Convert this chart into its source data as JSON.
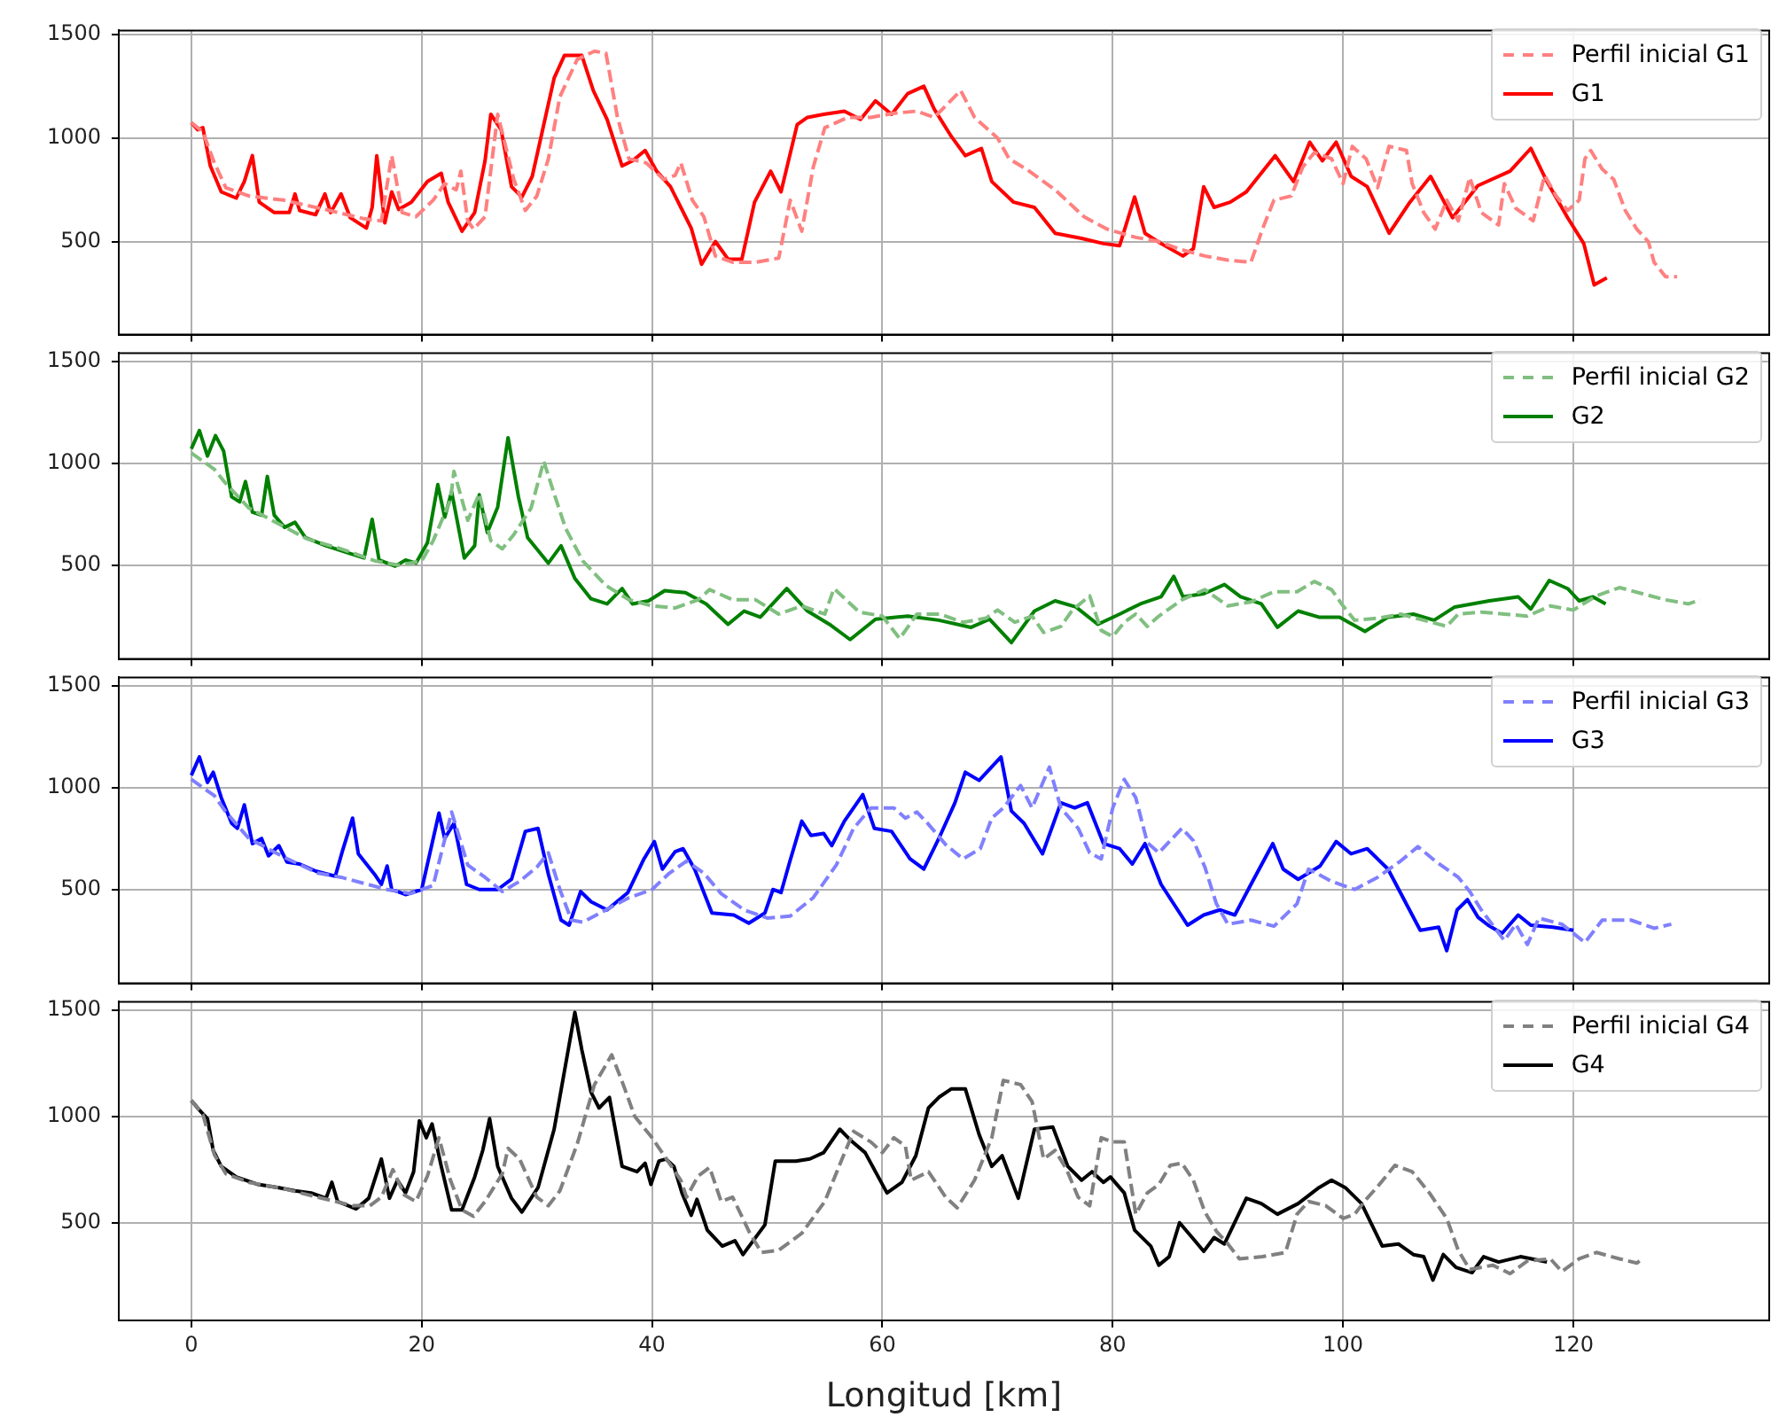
{
  "chart_data": [
    {
      "type": "line",
      "xlim": [
        -6.3,
        137
      ],
      "ylim": [
        50,
        1520
      ],
      "xticks": [
        0,
        20,
        40,
        60,
        80,
        100,
        120
      ],
      "yticks": [
        500,
        1000,
        1500
      ],
      "grid": true,
      "legend": "top right",
      "tick_labels": "y",
      "series": [
        {
          "name": "Perfil inicial G1",
          "color": "#ff8080",
          "line_style": "dashed",
          "x": [
            0,
            1,
            2,
            3,
            5,
            8,
            12,
            15,
            16.5,
            17.4,
            18.3,
            19.5,
            21,
            22,
            23,
            23.4,
            24,
            24.5,
            25.5,
            26.6,
            28,
            29,
            30,
            31,
            32,
            33.5,
            35,
            36,
            37,
            38,
            39.5,
            41,
            42,
            42.5,
            43.5,
            44.5,
            45.5,
            47,
            49,
            51,
            52,
            53,
            54,
            55,
            57,
            59,
            61,
            63,
            64.5,
            66.8,
            68,
            70,
            71,
            72.5,
            75,
            77.5,
            79.5,
            82,
            84,
            86,
            88,
            90,
            92,
            93,
            94,
            95.5,
            96.5,
            97.5,
            99,
            100,
            100.8,
            102,
            103,
            104,
            105.5,
            106,
            107,
            108,
            109,
            110,
            111,
            112,
            113.5,
            114,
            115,
            116.5,
            117.5,
            118.5,
            119.5,
            120.5,
            121,
            121.5,
            122.5,
            123.5,
            124.5,
            125.5,
            126.5,
            127,
            128,
            129
          ],
          "values": [
            1075,
            1030,
            880,
            760,
            720,
            700,
            650,
            610,
            600,
            915,
            640,
            620,
            700,
            780,
            750,
            840,
            600,
            560,
            620,
            1115,
            800,
            650,
            720,
            900,
            1200,
            1380,
            1420,
            1410,
            1100,
            900,
            880,
            800,
            820,
            880,
            700,
            620,
            430,
            400,
            400,
            420,
            700,
            550,
            860,
            1050,
            1100,
            1100,
            1120,
            1130,
            1100,
            1230,
            1100,
            1000,
            900,
            850,
            750,
            620,
            560,
            520,
            500,
            460,
            430,
            410,
            400,
            560,
            700,
            720,
            860,
            930,
            900,
            780,
            960,
            900,
            760,
            960,
            940,
            780,
            640,
            560,
            700,
            600,
            810,
            640,
            580,
            780,
            660,
            600,
            820,
            720,
            650,
            700,
            900,
            940,
            850,
            800,
            650,
            560,
            500,
            400,
            330,
            330
          ]
        },
        {
          "name": "G1",
          "color": "#ff0000",
          "line_style": "solid",
          "x": [
            0,
            0.55,
            1,
            1.65,
            2.6,
            3.9,
            4.6,
            5.3,
            5.9,
            7.2,
            8.5,
            9,
            9.4,
            10.8,
            11.6,
            12.1,
            13,
            13.8,
            15.2,
            15.7,
            16.1,
            16.8,
            17.4,
            18,
            19.1,
            20.5,
            21.7,
            22.3,
            23.5,
            24.6,
            25.5,
            26,
            26.9,
            27.8,
            28.7,
            29.6,
            30.5,
            31.5,
            32.4,
            33.9,
            34.9,
            36.1,
            37.4,
            38.3,
            39.4,
            40.4,
            41.6,
            42.5,
            43.4,
            44.3,
            45.5,
            46.6,
            47.8,
            48.9,
            50.3,
            51.2,
            52.6,
            53.5,
            54.9,
            56.7,
            58.1,
            59.4,
            60.8,
            62.2,
            63.6,
            64.5,
            65.9,
            67.2,
            68.6,
            69.5,
            71.4,
            73.2,
            75,
            77.3,
            79.2,
            80.6,
            81.9,
            82.8,
            84.2,
            86.1,
            87,
            87.9,
            88.8,
            90.2,
            91.6,
            94.1,
            95.7,
            97.1,
            98.2,
            99.4,
            100.7,
            102.1,
            104,
            105.8,
            107.6,
            109.5,
            111.7,
            114.5,
            116.3,
            117.7,
            119.5,
            120.9,
            121.8,
            122.9
          ],
          "values": [
            1075,
            1040,
            1050,
            865,
            740,
            710,
            790,
            915,
            690,
            640,
            640,
            730,
            650,
            630,
            730,
            640,
            730,
            615,
            565,
            665,
            915,
            590,
            740,
            655,
            690,
            790,
            830,
            690,
            550,
            640,
            890,
            1115,
            1040,
            765,
            715,
            815,
            1040,
            1290,
            1400,
            1400,
            1230,
            1090,
            865,
            890,
            940,
            840,
            765,
            665,
            565,
            390,
            500,
            415,
            415,
            690,
            840,
            740,
            1065,
            1100,
            1115,
            1130,
            1090,
            1180,
            1115,
            1215,
            1250,
            1140,
            1015,
            915,
            950,
            790,
            690,
            665,
            540,
            515,
            490,
            480,
            715,
            540,
            490,
            430,
            465,
            765,
            665,
            690,
            740,
            915,
            790,
            980,
            890,
            980,
            815,
            765,
            540,
            690,
            815,
            615,
            770,
            840,
            950,
            790,
            615,
            490,
            290,
            325
          ]
        }
      ]
    },
    {
      "type": "line",
      "xlim": [
        -6.3,
        137
      ],
      "ylim": [
        40,
        1540
      ],
      "xticks": [
        0,
        20,
        40,
        60,
        80,
        100,
        120
      ],
      "yticks": [
        500,
        1000,
        1500
      ],
      "grid": true,
      "legend": "top right",
      "tick_labels": "y",
      "series": [
        {
          "name": "Perfil inicial G2",
          "color": "#80bf80",
          "line_style": "dashed",
          "x": [
            0,
            1,
            2,
            3,
            5,
            7,
            10,
            13,
            16,
            18,
            20,
            21,
            22.5,
            22.8,
            24,
            25,
            26,
            27,
            28,
            29.5,
            30.6,
            31.5,
            32.5,
            34,
            36,
            38,
            40,
            42,
            44,
            45,
            47,
            49,
            51,
            53,
            55,
            55.8,
            58,
            60,
            61.5,
            63,
            65,
            67,
            69,
            70,
            71.5,
            73,
            74,
            75.5,
            76.5,
            78,
            79,
            80,
            81,
            82,
            83,
            84,
            86,
            88,
            90,
            92,
            94,
            96,
            97.5,
            99,
            100,
            101,
            103,
            105,
            107,
            109,
            110,
            112,
            114,
            116,
            118,
            120,
            122,
            124,
            126,
            128,
            130,
            131
          ],
          "values": [
            1050,
            1010,
            970,
            900,
            780,
            720,
            630,
            580,
            520,
            500,
            520,
            620,
            820,
            960,
            720,
            850,
            620,
            580,
            650,
            780,
            1010,
            850,
            680,
            520,
            400,
            330,
            300,
            290,
            330,
            380,
            330,
            330,
            260,
            300,
            260,
            385,
            270,
            250,
            140,
            260,
            260,
            220,
            240,
            280,
            220,
            250,
            170,
            200,
            280,
            350,
            180,
            150,
            220,
            260,
            200,
            250,
            330,
            380,
            300,
            320,
            370,
            370,
            420,
            380,
            300,
            230,
            240,
            260,
            230,
            200,
            260,
            270,
            260,
            250,
            300,
            280,
            350,
            390,
            360,
            330,
            310,
            330
          ]
        },
        {
          "name": "G2",
          "color": "#008000",
          "line_style": "solid",
          "x": [
            0,
            0.7,
            1.4,
            2.1,
            2.8,
            3.5,
            4.2,
            4.7,
            5.3,
            6.1,
            6.6,
            7.2,
            8.1,
            9,
            9.9,
            11.7,
            13.6,
            15,
            15.7,
            16.3,
            17.7,
            18.6,
            19.5,
            20.5,
            21.4,
            22,
            22.6,
            23.7,
            24.6,
            25,
            25.7,
            26.6,
            27.5,
            28.4,
            29.2,
            31,
            32.1,
            33.3,
            34.7,
            36.1,
            37.4,
            38.3,
            39.7,
            41.1,
            42.9,
            44.7,
            46.6,
            48,
            49.4,
            51.7,
            53.5,
            55.4,
            57.2,
            59.4,
            62.2,
            64.9,
            67.7,
            69.3,
            71.2,
            73.2,
            75,
            76.8,
            78.7,
            80.6,
            82.4,
            84.2,
            85.3,
            86.1,
            87.9,
            89.7,
            91.1,
            92.9,
            94.3,
            96.1,
            97.9,
            99.7,
            101.9,
            103.9,
            106.1,
            107.9,
            109.7,
            112.7,
            115.2,
            116.3,
            117.9,
            119.5,
            120.5,
            121.7,
            122.8
          ],
          "values": [
            1070,
            1160,
            1035,
            1135,
            1060,
            835,
            810,
            910,
            760,
            745,
            935,
            745,
            685,
            710,
            635,
            595,
            560,
            535,
            725,
            525,
            495,
            525,
            510,
            610,
            895,
            735,
            860,
            535,
            595,
            845,
            660,
            785,
            1125,
            835,
            635,
            510,
            595,
            435,
            335,
            310,
            385,
            310,
            325,
            375,
            365,
            310,
            210,
            275,
            245,
            385,
            275,
            210,
            135,
            235,
            250,
            230,
            195,
            235,
            120,
            275,
            325,
            295,
            210,
            260,
            310,
            345,
            445,
            345,
            360,
            405,
            345,
            310,
            195,
            275,
            245,
            245,
            175,
            245,
            260,
            230,
            295,
            325,
            345,
            285,
            425,
            385,
            325,
            345,
            310
          ]
        }
      ]
    },
    {
      "type": "line",
      "xlim": [
        -6.3,
        137
      ],
      "ylim": [
        40,
        1540
      ],
      "xticks": [
        0,
        20,
        40,
        60,
        80,
        100,
        120
      ],
      "yticks": [
        500,
        1000,
        1500
      ],
      "grid": true,
      "legend": "top right",
      "tick_labels": "y",
      "series": [
        {
          "name": "Perfil inicial G3",
          "color": "#8080ff",
          "line_style": "dashed",
          "x": [
            0,
            1,
            2,
            3,
            5,
            8,
            11,
            13,
            15,
            17,
            19,
            21,
            22.6,
            24,
            25.5,
            27,
            28.5,
            30,
            31,
            32,
            33,
            34,
            36,
            38,
            40,
            41.5,
            43,
            44.5,
            46,
            48,
            50,
            52,
            54,
            56,
            57.5,
            59,
            61,
            62,
            63,
            64,
            65.5,
            67,
            68.5,
            69.5,
            70.5,
            72,
            73,
            74.5,
            75.5,
            77,
            78,
            79,
            80,
            81,
            82,
            83,
            84,
            85,
            86,
            87,
            88,
            89,
            90,
            92,
            94,
            96,
            97,
            99,
            101,
            103,
            105,
            106.5,
            108,
            110,
            111,
            112,
            114,
            115,
            116,
            117,
            119,
            121,
            122.5,
            125,
            127,
            128.5
          ],
          "values": [
            1040,
            1000,
            960,
            880,
            750,
            660,
            580,
            560,
            530,
            500,
            480,
            520,
            880,
            620,
            560,
            490,
            540,
            610,
            680,
            500,
            350,
            340,
            400,
            460,
            500,
            580,
            640,
            580,
            480,
            400,
            360,
            370,
            460,
            620,
            800,
            900,
            900,
            850,
            880,
            820,
            720,
            650,
            700,
            850,
            900,
            1010,
            900,
            1100,
            900,
            800,
            680,
            650,
            900,
            1040,
            950,
            730,
            680,
            740,
            800,
            740,
            610,
            430,
            330,
            350,
            320,
            430,
            600,
            540,
            500,
            560,
            640,
            710,
            640,
            560,
            490,
            400,
            250,
            330,
            230,
            360,
            330,
            240,
            350,
            350,
            310,
            330
          ]
        },
        {
          "name": "G3",
          "color": "#0000ff",
          "line_style": "solid",
          "x": [
            0,
            0.7,
            1.4,
            1.9,
            2.6,
            3.5,
            4,
            4.6,
            5.3,
            6.1,
            6.7,
            7.6,
            8.3,
            9.4,
            10.8,
            12.5,
            13.1,
            14,
            14.5,
            15.9,
            16.5,
            17,
            17.4,
            18.6,
            20,
            20.9,
            21.5,
            22,
            22.8,
            23.9,
            25,
            26.6,
            27.8,
            29,
            30.1,
            31,
            32.1,
            32.8,
            33.8,
            34.7,
            36.1,
            37.9,
            39.3,
            40.2,
            40.9,
            42,
            42.7,
            43.7,
            45.2,
            47.1,
            48.4,
            49.8,
            50.5,
            51.2,
            51.9,
            53,
            53.8,
            54.9,
            55.6,
            56.7,
            58.3,
            59.3,
            60.8,
            62.4,
            63.6,
            64.9,
            66.3,
            67.2,
            68.4,
            70.3,
            71.2,
            72.3,
            73.9,
            75.5,
            76.7,
            77.8,
            79.2,
            80.6,
            81.7,
            82.8,
            84.2,
            86.5,
            87.9,
            89.3,
            90.6,
            92,
            93.9,
            94.8,
            96.1,
            98,
            99.4,
            100.7,
            102.1,
            103.9,
            105.3,
            106.7,
            108.3,
            109,
            109.9,
            110.8,
            111.7,
            112.6,
            113.8,
            115.2,
            116.3,
            118.2,
            120
          ],
          "values": [
            1060,
            1150,
            1025,
            1075,
            950,
            825,
            800,
            915,
            725,
            750,
            665,
            715,
            635,
            625,
            590,
            565,
            685,
            850,
            675,
            575,
            525,
            615,
            500,
            475,
            500,
            725,
            875,
            750,
            825,
            525,
            500,
            500,
            550,
            785,
            800,
            575,
            350,
            325,
            490,
            440,
            400,
            485,
            650,
            735,
            600,
            685,
            700,
            600,
            385,
            375,
            335,
            385,
            500,
            485,
            625,
            835,
            765,
            775,
            715,
            835,
            965,
            800,
            785,
            650,
            600,
            750,
            925,
            1075,
            1035,
            1150,
            885,
            825,
            675,
            925,
            900,
            925,
            725,
            700,
            625,
            725,
            525,
            325,
            375,
            400,
            375,
            525,
            725,
            600,
            550,
            615,
            735,
            675,
            700,
            600,
            450,
            300,
            315,
            200,
            400,
            450,
            365,
            325,
            285,
            375,
            325,
            315,
            300
          ]
        }
      ]
    },
    {
      "type": "line",
      "xlabel": "Longitud [km]",
      "xlim": [
        -6.3,
        137
      ],
      "ylim": [
        40,
        1540
      ],
      "xticks": [
        0,
        20,
        40,
        60,
        80,
        100,
        120
      ],
      "yticks": [
        500,
        1000,
        1500
      ],
      "grid": true,
      "legend": "top right",
      "series": [
        {
          "name": "Perfil inicial G4",
          "color": "#808080",
          "line_style": "dashed",
          "x": [
            0,
            1,
            2,
            3,
            5,
            8,
            11,
            14,
            15.5,
            16.5,
            17.5,
            18.5,
            19.5,
            20.5,
            21.5,
            22.5,
            23.5,
            24.5,
            25.5,
            27,
            27.5,
            28.5,
            30,
            31,
            32,
            33.5,
            35,
            36.5,
            37.5,
            38.5,
            40,
            41,
            42.5,
            43,
            44,
            45,
            46,
            47,
            48.5,
            49.5,
            51,
            53,
            55,
            56.5,
            57.5,
            59,
            60,
            61,
            62,
            62.5,
            64,
            65.5,
            66.5,
            68,
            69.5,
            70.5,
            72,
            73,
            74,
            75,
            76,
            77,
            78,
            79,
            80,
            81,
            82,
            83,
            84,
            85,
            86,
            87,
            88,
            89,
            90,
            91,
            93,
            95,
            96,
            97,
            98.5,
            100,
            101,
            102,
            103,
            104.5,
            106,
            107.5,
            109,
            110,
            111,
            113,
            114.5,
            116,
            118,
            119,
            120.5,
            122,
            124,
            125.5,
            126
          ],
          "values": [
            1075,
            1010,
            820,
            730,
            690,
            660,
            620,
            580,
            580,
            620,
            750,
            630,
            600,
            720,
            900,
            700,
            560,
            530,
            600,
            730,
            850,
            800,
            620,
            580,
            650,
            870,
            1150,
            1290,
            1150,
            1000,
            900,
            820,
            700,
            620,
            720,
            760,
            600,
            620,
            450,
            360,
            370,
            450,
            600,
            800,
            930,
            880,
            830,
            900,
            860,
            700,
            740,
            620,
            570,
            700,
            900,
            1170,
            1150,
            1070,
            800,
            840,
            750,
            620,
            580,
            900,
            880,
            880,
            540,
            640,
            680,
            770,
            780,
            700,
            550,
            460,
            400,
            330,
            340,
            360,
            540,
            600,
            580,
            520,
            540,
            610,
            670,
            770,
            740,
            640,
            520,
            370,
            280,
            300,
            260,
            320,
            330,
            270,
            330,
            360,
            330,
            310,
            330
          ]
        },
        {
          "name": "G4",
          "color": "#000000",
          "line_style": "solid",
          "x": [
            0,
            0.7,
            1.4,
            1.9,
            2.6,
            3.9,
            5.8,
            7.6,
            9,
            10.4,
            11.7,
            12.2,
            12.7,
            14.3,
            15.4,
            16.5,
            17.2,
            17.9,
            18.6,
            19.3,
            19.8,
            20.4,
            20.9,
            21.7,
            22.6,
            23.5,
            24.6,
            25.3,
            25.9,
            26.6,
            27.8,
            28.7,
            30.1,
            31.5,
            32.4,
            33.3,
            33.9,
            34.7,
            35.4,
            36.3,
            37.4,
            38.7,
            39.4,
            39.9,
            40.6,
            41.2,
            41.9,
            42.6,
            43.4,
            43.9,
            44.8,
            46.1,
            47.2,
            47.9,
            49.8,
            50.7,
            52.5,
            53.7,
            54.9,
            56.3,
            57.2,
            58.5,
            60.4,
            61.7,
            62.9,
            64,
            64.9,
            66,
            67.2,
            68.4,
            69.5,
            70.4,
            71.8,
            73.2,
            74.8,
            76.1,
            77.3,
            78.2,
            79.2,
            79.8,
            81,
            81.9,
            83.3,
            84,
            84.9,
            85.8,
            86.9,
            87.9,
            88.8,
            89.7,
            91.6,
            92.9,
            94.3,
            96.1,
            97.9,
            99,
            100.2,
            101.6,
            103.4,
            104.8,
            106.1,
            107,
            107.8,
            108.7,
            109.8,
            111.2,
            112.2,
            113.5,
            115.4,
            117.7
          ],
          "values": [
            1075,
            1030,
            990,
            840,
            765,
            715,
            680,
            665,
            650,
            640,
            615,
            690,
            600,
            565,
            615,
            800,
            615,
            700,
            640,
            740,
            980,
            900,
            965,
            765,
            560,
            560,
            715,
            840,
            990,
            765,
            615,
            550,
            665,
            940,
            1215,
            1490,
            1315,
            1115,
            1040,
            1090,
            765,
            740,
            780,
            680,
            790,
            800,
            765,
            640,
            535,
            610,
            465,
            390,
            415,
            350,
            490,
            790,
            790,
            800,
            830,
            940,
            890,
            830,
            640,
            690,
            815,
            1040,
            1090,
            1130,
            1130,
            915,
            765,
            815,
            615,
            940,
            950,
            765,
            700,
            740,
            690,
            715,
            640,
            465,
            390,
            300,
            340,
            500,
            430,
            365,
            430,
            400,
            615,
            590,
            540,
            590,
            665,
            700,
            665,
            590,
            390,
            400,
            350,
            340,
            230,
            350,
            290,
            265,
            340,
            315,
            340,
            315
          ]
        }
      ]
    }
  ]
}
